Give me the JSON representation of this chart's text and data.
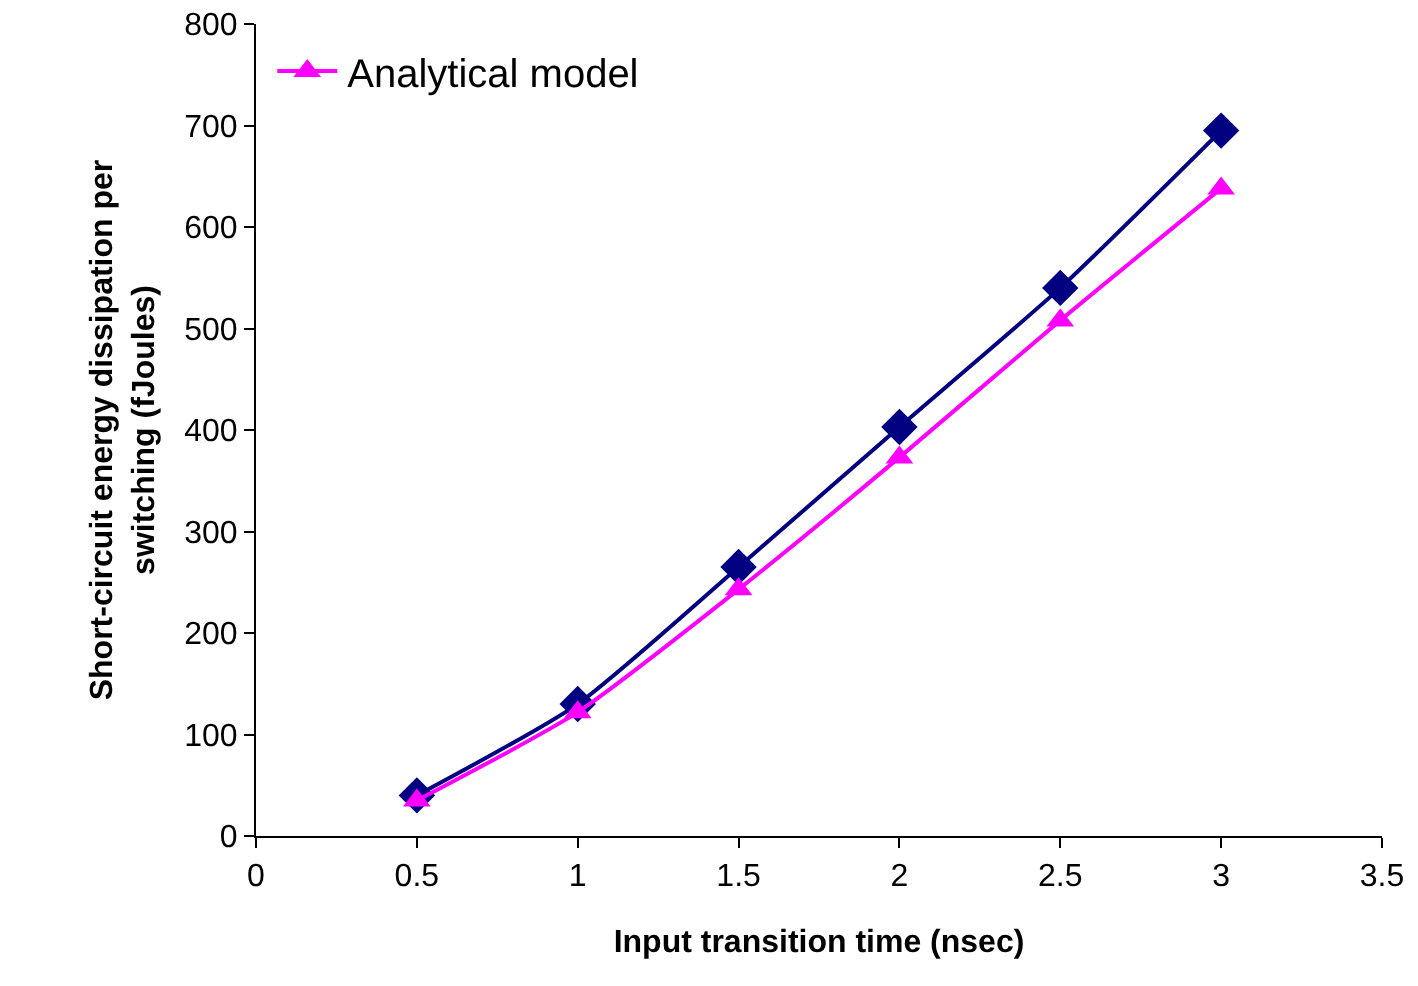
{
  "chart_data": {
    "type": "line",
    "xlabel": "Input transition time (nsec)",
    "ylabel": "Short-circuit energy dissipation per switching (fJoules)",
    "x": [
      0.5,
      1,
      1.5,
      2,
      2.5,
      3
    ],
    "series": [
      {
        "color": "#000080",
        "marker": "diamond",
        "values": [
          40,
          130,
          265,
          403,
          540,
          695
        ]
      },
      {
        "name": "Analytical model",
        "color": "#ff00ff",
        "marker": "triangle",
        "values": [
          35,
          122,
          243,
          373,
          508,
          638
        ]
      }
    ],
    "xlim": [
      0,
      3.5
    ],
    "xticks": [
      0,
      0.5,
      1,
      1.5,
      2,
      2.5,
      3,
      3.5
    ],
    "ylim": [
      0,
      800
    ],
    "yticks": [
      0,
      100,
      200,
      300,
      400,
      500,
      600,
      700,
      800
    ],
    "grid": false,
    "legend": "top left"
  }
}
